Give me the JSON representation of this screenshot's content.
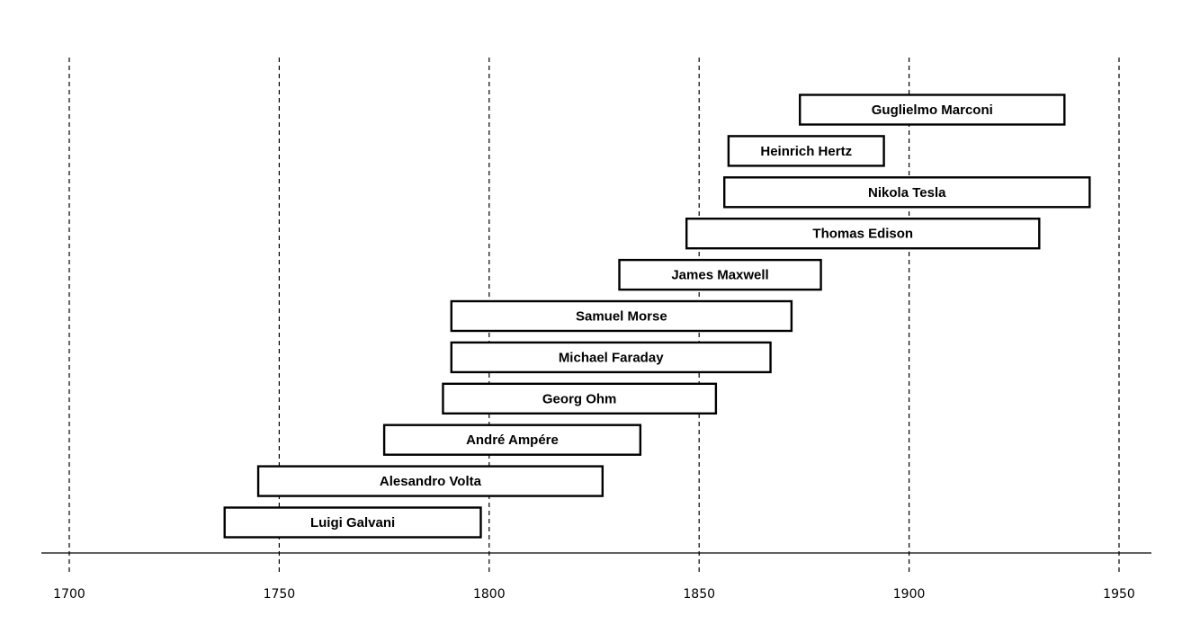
{
  "chart_data": {
    "type": "bar",
    "orientation": "horizontal-timeline",
    "title": "",
    "xlabel": "",
    "ylabel": "",
    "xlim": [
      1694,
      1958
    ],
    "x_ticks": [
      1700,
      1750,
      1800,
      1850,
      1900,
      1950
    ],
    "grid": true,
    "legend": "none",
    "series": [
      {
        "values": [
          {
            "label": "Luigi Galvani",
            "start": 1737,
            "end": 1798
          },
          {
            "label": "Alesandro Volta",
            "start": 1745,
            "end": 1827
          },
          {
            "label": "André Ampére",
            "start": 1775,
            "end": 1836
          },
          {
            "label": "Georg Ohm",
            "start": 1789,
            "end": 1854
          },
          {
            "label": "Michael Faraday",
            "start": 1791,
            "end": 1867
          },
          {
            "label": "Samuel Morse",
            "start": 1791,
            "end": 1872
          },
          {
            "label": "James Maxwell",
            "start": 1831,
            "end": 1879
          },
          {
            "label": "Thomas Edison",
            "start": 1847,
            "end": 1931
          },
          {
            "label": "Nikola Tesla",
            "start": 1856,
            "end": 1943
          },
          {
            "label": "Heinrich Hertz",
            "start": 1857,
            "end": 1894
          },
          {
            "label": "Guglielmo Marconi",
            "start": 1874,
            "end": 1937
          }
        ]
      }
    ]
  }
}
